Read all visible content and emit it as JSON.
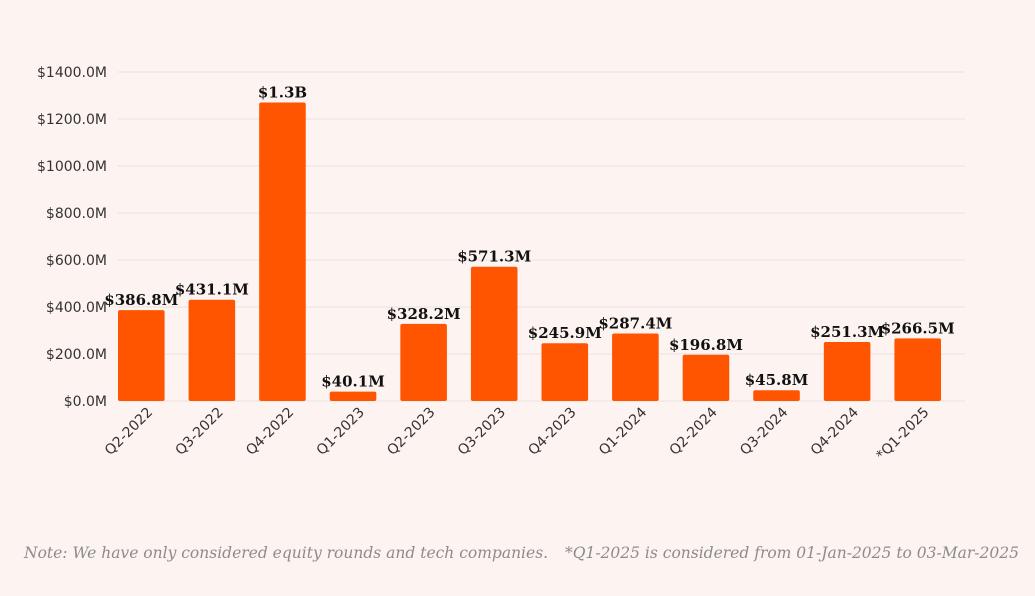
{
  "chart_data": {
    "type": "bar",
    "title": "",
    "xlabel": "",
    "ylabel": "",
    "ylim": [
      0,
      1400
    ],
    "yticks": [
      0,
      200,
      400,
      600,
      800,
      1000,
      1200,
      1400
    ],
    "ytick_labels": [
      "$0.0M",
      "$200.0M",
      "$400.0M",
      "$600.0M",
      "$800.0M",
      "$1000.0M",
      "$1200.0M",
      "$1400.0M"
    ],
    "categories": [
      "Q2-2022",
      "Q3-2022",
      "Q4-2022",
      "Q1-2023",
      "Q2-2023",
      "Q3-2023",
      "Q4-2023",
      "Q1-2024",
      "Q2-2024",
      "Q3-2024",
      "Q4-2024",
      "*Q1-2025"
    ],
    "values": [
      386.8,
      431.1,
      1270,
      40.1,
      328.2,
      571.3,
      245.9,
      287.4,
      196.8,
      45.8,
      251.3,
      266.5
    ],
    "data_labels": [
      "$386.8M",
      "$431.1M",
      "$1.3B",
      "$40.1M",
      "$328.2M",
      "$571.3M",
      "$245.9M",
      "$287.4M",
      "$196.8M",
      "$45.8M",
      "$251.3M",
      "$266.5M"
    ],
    "bar_color": "#ff5500",
    "grid": true
  },
  "notes": {
    "left": "Note: We have only considered equity rounds and tech companies.",
    "right": "*Q1-2025 is considered from 01-Jan-2025 to 03-Mar-2025"
  }
}
